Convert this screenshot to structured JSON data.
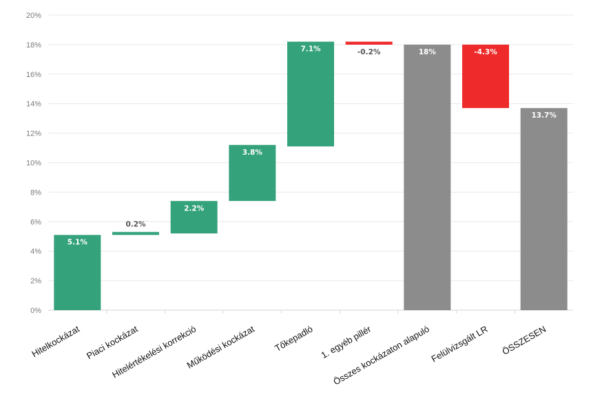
{
  "chart_data": {
    "type": "bar",
    "subtype": "waterfall",
    "title": "",
    "xlabel": "",
    "ylabel": "",
    "ylim": [
      0,
      20
    ],
    "y_ticks": [
      "0%",
      "2%",
      "4%",
      "6%",
      "8%",
      "10%",
      "12%",
      "14%",
      "16%",
      "18%",
      "20%"
    ],
    "grid": true,
    "legend": "none",
    "colors": {
      "increase": "#34a27b",
      "decrease": "#ee2a2a",
      "total": "#8c8c8c"
    },
    "categories": [
      "Hitelkockázat",
      "Piaci kockázat",
      "Hitelértékelési  korrekció",
      "Működési kockázat",
      "Tőkepadló",
      "1. egyéb pillér",
      "Összes kockázaton alapuló",
      "Felülvizsgált LR",
      "ÖSSZESEN"
    ],
    "bars": [
      {
        "category": "Hitelkockázat",
        "kind": "increase",
        "start": 0,
        "end": 5.1,
        "label": "5.1%"
      },
      {
        "category": "Piaci kockázat",
        "kind": "increase",
        "start": 5.1,
        "end": 5.3,
        "label": "0.2%"
      },
      {
        "category": "Hitelértékelési  korrekció",
        "kind": "increase",
        "start": 5.2,
        "end": 7.4,
        "label": "2.2%"
      },
      {
        "category": "Működési kockázat",
        "kind": "increase",
        "start": 7.4,
        "end": 11.2,
        "label": "3.8%"
      },
      {
        "category": "Tőkepadló",
        "kind": "increase",
        "start": 11.1,
        "end": 18.2,
        "label": "7.1%"
      },
      {
        "category": "1. egyéb pillér",
        "kind": "decrease",
        "start": 18.2,
        "end": 18.0,
        "label": "-0.2%"
      },
      {
        "category": "Összes kockázaton alapuló",
        "kind": "total",
        "start": 0,
        "end": 18.0,
        "label": "18%"
      },
      {
        "category": "Felülvizsgált LR",
        "kind": "decrease",
        "start": 18.0,
        "end": 13.7,
        "label": "-4.3%"
      },
      {
        "category": "ÖSSZESEN",
        "kind": "total",
        "start": 0,
        "end": 13.7,
        "label": "13.7%"
      }
    ]
  }
}
